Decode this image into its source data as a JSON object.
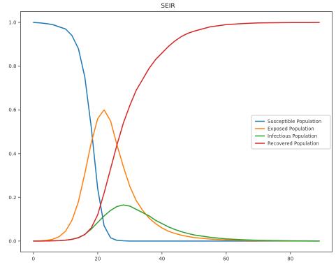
{
  "chart_data": {
    "type": "line",
    "title": "SEIR",
    "xlabel": "",
    "ylabel": "",
    "xlim": [
      -4,
      93
    ],
    "ylim": [
      -0.05,
      1.05
    ],
    "xticks": [
      0,
      20,
      40,
      60,
      80
    ],
    "yticks": [
      0.0,
      0.2,
      0.4,
      0.6,
      0.8,
      1.0
    ],
    "xtick_labels": [
      "0",
      "20",
      "40",
      "60",
      "80"
    ],
    "ytick_labels": [
      "0.0",
      "0.2",
      "0.4",
      "0.6",
      "0.8",
      "1.0"
    ],
    "grid": false,
    "legend_position": "center-right",
    "x": [
      0,
      2,
      4,
      6,
      8,
      10,
      12,
      14,
      16,
      18,
      20,
      22,
      24,
      26,
      28,
      30,
      32,
      34,
      36,
      38,
      40,
      42,
      44,
      46,
      48,
      50,
      55,
      60,
      65,
      70,
      75,
      80,
      85,
      89
    ],
    "series": [
      {
        "name": "Susceptible Population",
        "color": "#1f77b4",
        "values": [
          1.0,
          0.998,
          0.995,
          0.99,
          0.98,
          0.97,
          0.94,
          0.88,
          0.75,
          0.52,
          0.24,
          0.07,
          0.015,
          0.003,
          0.001,
          0.0,
          0.0,
          0.0,
          0.0,
          0.0,
          0.0,
          0.0,
          0.0,
          0.0,
          0.0,
          0.0,
          0.0,
          0.0,
          0.0,
          0.0,
          0.0,
          0.0,
          0.0,
          0.0
        ]
      },
      {
        "name": "Exposed Population",
        "color": "#ff7f0e",
        "values": [
          0.0,
          0.001,
          0.003,
          0.008,
          0.02,
          0.045,
          0.095,
          0.18,
          0.31,
          0.45,
          0.56,
          0.6,
          0.55,
          0.44,
          0.34,
          0.25,
          0.185,
          0.14,
          0.105,
          0.08,
          0.06,
          0.045,
          0.035,
          0.027,
          0.021,
          0.016,
          0.009,
          0.005,
          0.003,
          0.0015,
          0.001,
          0.0005,
          0.0002,
          0.0001
        ]
      },
      {
        "name": "Infectious Population",
        "color": "#2ca02c",
        "values": [
          0.0,
          0.0,
          0.0005,
          0.001,
          0.002,
          0.004,
          0.008,
          0.016,
          0.03,
          0.055,
          0.085,
          0.115,
          0.14,
          0.158,
          0.165,
          0.16,
          0.145,
          0.13,
          0.115,
          0.095,
          0.08,
          0.065,
          0.053,
          0.043,
          0.035,
          0.028,
          0.017,
          0.01,
          0.006,
          0.0035,
          0.002,
          0.001,
          0.0006,
          0.0003
        ]
      },
      {
        "name": "Recovered Population",
        "color": "#d62728",
        "values": [
          0.0,
          0.0,
          0.0005,
          0.001,
          0.002,
          0.004,
          0.008,
          0.015,
          0.03,
          0.06,
          0.12,
          0.22,
          0.33,
          0.44,
          0.54,
          0.62,
          0.69,
          0.74,
          0.79,
          0.83,
          0.86,
          0.89,
          0.915,
          0.935,
          0.95,
          0.96,
          0.98,
          0.99,
          0.995,
          0.998,
          0.999,
          0.9995,
          0.9998,
          1.0
        ]
      }
    ]
  }
}
